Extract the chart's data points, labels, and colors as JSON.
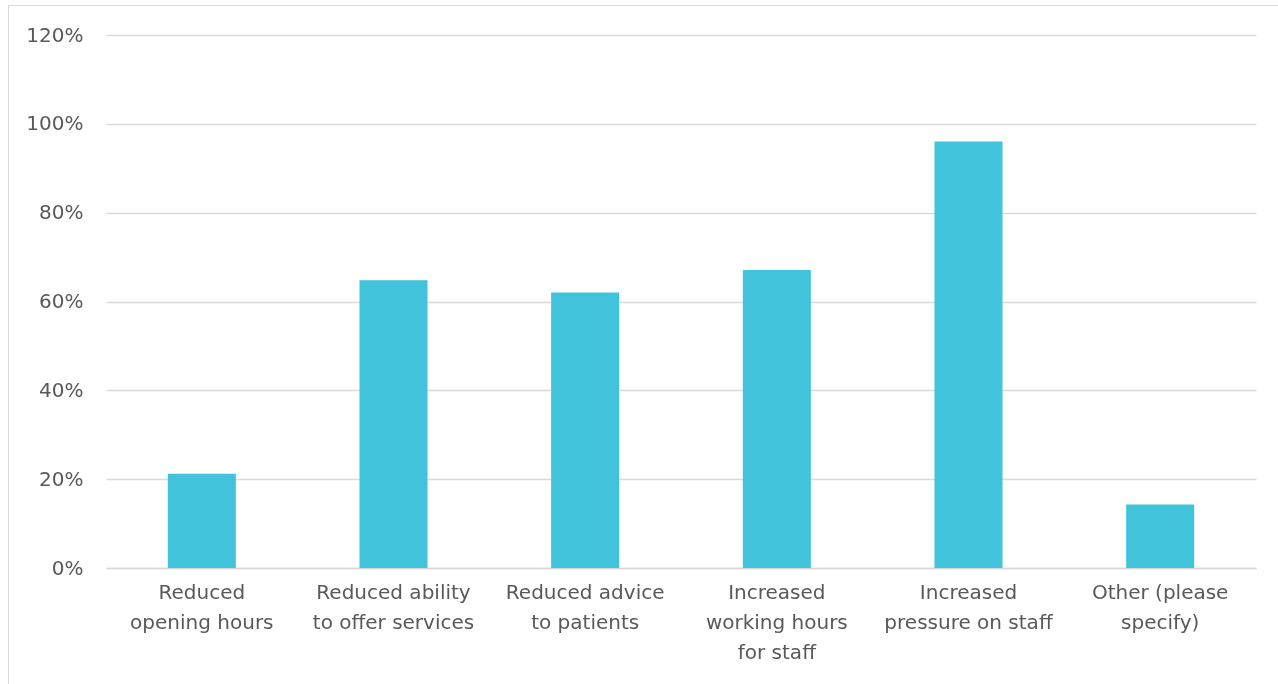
{
  "chart_data": {
    "type": "bar",
    "categories": [
      "Reduced opening hours",
      "Reduced ability to offer services",
      "Reduced advice to patients",
      "Increased working hours for staff",
      "Increased pressure on staff",
      "Other (please specify)"
    ],
    "values": [
      21.2,
      64.8,
      62.0,
      67.1,
      96.0,
      14.3
    ],
    "color": "#42c3dc",
    "ylim": [
      0,
      120
    ],
    "yticks": [
      {
        "value": 0,
        "label": "0%"
      },
      {
        "value": 20,
        "label": "20%"
      },
      {
        "value": 40,
        "label": "40%"
      },
      {
        "value": 60,
        "label": "60%"
      },
      {
        "value": 80,
        "label": "80%"
      },
      {
        "value": 100,
        "label": "100%"
      },
      {
        "value": 120,
        "label": "120%"
      }
    ],
    "grid": "y"
  }
}
